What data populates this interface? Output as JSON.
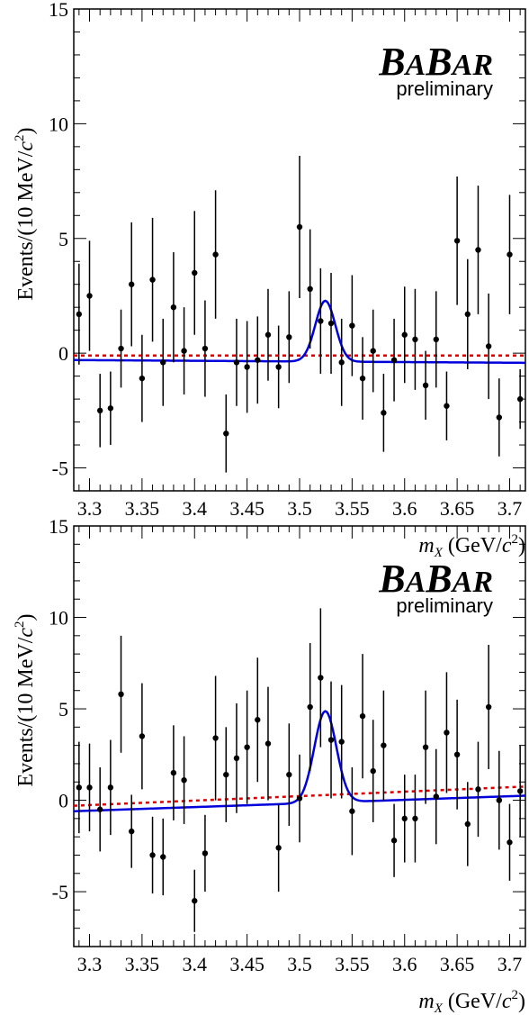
{
  "chart_data": [
    {
      "type": "scatter",
      "title": "",
      "xlabel": "m_X (GeV/c²)",
      "ylabel": "Events/(10 MeV/c²)",
      "xlim": [
        3.285,
        3.715
      ],
      "ylim": [
        -6,
        15
      ],
      "x_ticks": [
        3.3,
        3.35,
        3.4,
        3.45,
        3.5,
        3.55,
        3.6,
        3.65,
        3.7
      ],
      "x_tick_labels": [
        "3.3",
        "3.35",
        "3.4",
        "3.45",
        "3.5",
        "3.55",
        "3.6",
        "3.65",
        "3.7"
      ],
      "y_ticks": [
        -5,
        0,
        5,
        10,
        15
      ],
      "y_tick_labels": [
        "-5",
        "0",
        "5",
        "10",
        "15"
      ],
      "watermark": {
        "logo_b1": "B",
        "logo_a1": "A",
        "logo_b2": "B",
        "logo_ar": "AR",
        "sub": "preliminary"
      },
      "colors": {
        "fit": "#0000dd",
        "background": "#dd0000",
        "points": "#000000"
      },
      "series": [
        {
          "kind": "data_points",
          "x": [
            3.29,
            3.3,
            3.31,
            3.32,
            3.33,
            3.34,
            3.35,
            3.36,
            3.37,
            3.38,
            3.39,
            3.4,
            3.41,
            3.42,
            3.43,
            3.44,
            3.45,
            3.46,
            3.47,
            3.48,
            3.49,
            3.5,
            3.51,
            3.52,
            3.53,
            3.54,
            3.55,
            3.56,
            3.57,
            3.58,
            3.59,
            3.6,
            3.61,
            3.62,
            3.63,
            3.64,
            3.65,
            3.66,
            3.67,
            3.68,
            3.69,
            3.7,
            3.71
          ],
          "y": [
            1.7,
            2.5,
            -2.5,
            -2.4,
            0.2,
            3.0,
            -1.1,
            3.2,
            -0.4,
            2.0,
            0.1,
            3.5,
            0.2,
            4.3,
            -3.5,
            -0.4,
            -0.6,
            -0.3,
            0.8,
            -0.6,
            0.7,
            5.5,
            2.8,
            1.4,
            1.3,
            -0.4,
            1.2,
            -1.1,
            0.1,
            -2.6,
            -0.3,
            0.8,
            0.6,
            -1.4,
            0.6,
            -2.3,
            4.9,
            1.7,
            4.5,
            0.3,
            -2.8,
            4.3,
            -2.0
          ],
          "err": [
            2.2,
            2.4,
            1.6,
            1.6,
            1.7,
            2.7,
            1.9,
            2.7,
            1.9,
            2.4,
            1.9,
            2.7,
            2.1,
            2.8,
            1.7,
            1.9,
            2.0,
            1.9,
            2.0,
            1.8,
            2.0,
            3.1,
            2.6,
            2.3,
            2.2,
            1.9,
            2.2,
            1.8,
            1.8,
            1.7,
            1.8,
            2.1,
            2.2,
            1.5,
            2.1,
            1.5,
            2.8,
            2.4,
            2.8,
            2.3,
            1.7,
            2.6,
            1.3
          ]
        },
        {
          "kind": "fit_gaussian",
          "baseline": [
            -0.3,
            -0.42
          ],
          "mean": 3.5245,
          "sigma": 0.0095,
          "amplitude": 2.65
        },
        {
          "kind": "background_line",
          "y_at_xmin": -0.1,
          "y_at_xmax": -0.1
        }
      ]
    },
    {
      "type": "scatter",
      "title": "",
      "xlabel": "m_X (GeV/c²)",
      "ylabel": "Events/(10 MeV/c²)",
      "xlim": [
        3.285,
        3.715
      ],
      "ylim": [
        -8,
        15
      ],
      "x_ticks": [
        3.3,
        3.35,
        3.4,
        3.45,
        3.5,
        3.55,
        3.6,
        3.65,
        3.7
      ],
      "x_tick_labels": [
        "3.3",
        "3.35",
        "3.4",
        "3.45",
        "3.5",
        "3.55",
        "3.6",
        "3.65",
        "3.7"
      ],
      "y_ticks": [
        -5,
        0,
        5,
        10,
        15
      ],
      "y_tick_labels": [
        "-5",
        "0",
        "5",
        "10",
        "15"
      ],
      "watermark": {
        "logo_b1": "B",
        "logo_a1": "A",
        "logo_b2": "B",
        "logo_ar": "AR",
        "sub": "preliminary"
      },
      "colors": {
        "fit": "#0000dd",
        "background": "#dd0000",
        "points": "#000000"
      },
      "series": [
        {
          "kind": "data_points",
          "x": [
            3.29,
            3.3,
            3.31,
            3.32,
            3.33,
            3.34,
            3.35,
            3.36,
            3.37,
            3.38,
            3.39,
            3.4,
            3.41,
            3.42,
            3.43,
            3.44,
            3.45,
            3.46,
            3.47,
            3.48,
            3.49,
            3.5,
            3.51,
            3.52,
            3.53,
            3.54,
            3.55,
            3.56,
            3.57,
            3.58,
            3.59,
            3.6,
            3.61,
            3.62,
            3.63,
            3.64,
            3.65,
            3.66,
            3.67,
            3.68,
            3.69,
            3.7,
            3.71
          ],
          "y": [
            0.7,
            0.7,
            -0.5,
            0.7,
            5.8,
            -1.7,
            3.5,
            -3.0,
            -3.1,
            1.5,
            1.1,
            -5.5,
            -2.9,
            3.4,
            1.4,
            2.3,
            2.9,
            4.4,
            3.1,
            -2.6,
            1.4,
            0.1,
            5.1,
            6.7,
            3.3,
            3.2,
            -0.6,
            4.6,
            1.6,
            3.0,
            -2.2,
            -1.0,
            -1.0,
            2.9,
            0.2,
            3.7,
            2.5,
            -1.3,
            0.6,
            5.1,
            0.0,
            -2.3,
            0.5
          ],
          "err": [
            2.5,
            2.4,
            2.3,
            2.6,
            3.2,
            2.0,
            2.9,
            2.1,
            2.1,
            2.6,
            2.4,
            1.7,
            2.1,
            3.4,
            2.6,
            3.0,
            3.1,
            3.4,
            3.1,
            2.4,
            2.8,
            2.4,
            3.5,
            3.8,
            3.2,
            3.1,
            2.4,
            3.4,
            2.8,
            3.0,
            2.0,
            2.4,
            2.4,
            3.1,
            2.6,
            3.3,
            3.0,
            2.3,
            2.6,
            3.4,
            2.7,
            2.1,
            2.5
          ]
        },
        {
          "kind": "fit_gaussian",
          "baseline": [
            -0.6,
            0.25
          ],
          "mean": 3.5245,
          "sigma": 0.0105,
          "amplitude": 5.0
        },
        {
          "kind": "background_line",
          "y_at_xmin": -0.3,
          "y_at_xmax": 0.75
        }
      ]
    }
  ]
}
